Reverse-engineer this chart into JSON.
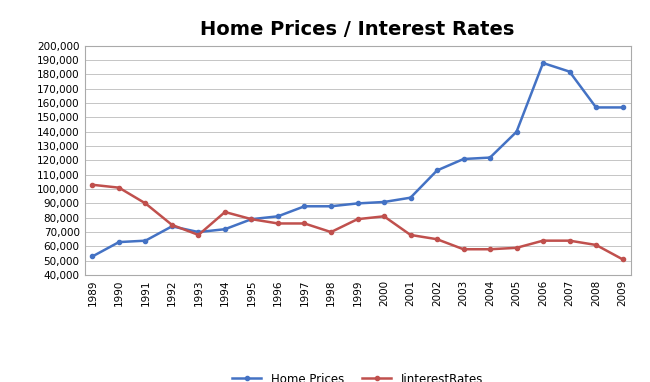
{
  "title": "Home Prices / Interest Rates",
  "years": [
    1989,
    1990,
    1991,
    1992,
    1993,
    1994,
    1995,
    1996,
    1997,
    1998,
    1999,
    2000,
    2001,
    2002,
    2003,
    2004,
    2005,
    2006,
    2007,
    2008,
    2009
  ],
  "home_prices": [
    53000,
    63000,
    64000,
    74000,
    70000,
    72000,
    79000,
    81000,
    88000,
    88000,
    90000,
    91000,
    94000,
    113000,
    121000,
    122000,
    140000,
    188000,
    182000,
    157000,
    157000
  ],
  "interest_rates": [
    103000,
    101000,
    90000,
    75000,
    68000,
    84000,
    79000,
    76000,
    76000,
    70000,
    79000,
    81000,
    68000,
    65000,
    58000,
    58000,
    59000,
    64000,
    64000,
    61000,
    51000
  ],
  "home_prices_color": "#4472C4",
  "interest_rates_color": "#C0504D",
  "ylim": [
    40000,
    200000
  ],
  "yticks": [
    40000,
    50000,
    60000,
    70000,
    80000,
    90000,
    100000,
    110000,
    120000,
    130000,
    140000,
    150000,
    160000,
    170000,
    180000,
    190000,
    200000
  ],
  "background_color": "#FFFFFF",
  "title_fontsize": 14,
  "legend_labels": [
    "Home Prices",
    "IinterestRates"
  ],
  "marker": "o",
  "marker_size": 3,
  "line_width": 1.8,
  "grid_color": "#BBBBBB",
  "spine_color": "#AAAAAA",
  "tick_fontsize": 7.5,
  "legend_fontsize": 8.5
}
